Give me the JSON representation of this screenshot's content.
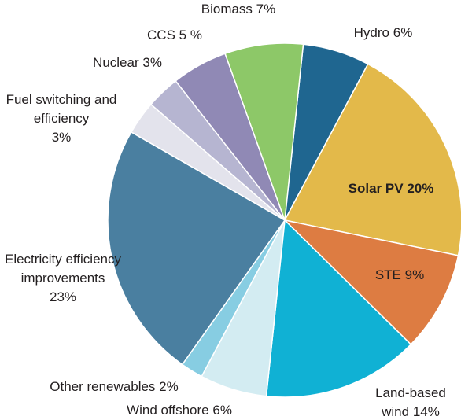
{
  "chart_data": {
    "type": "pie",
    "categories": [
      "Hydro",
      "Solar PV",
      "STE",
      "Land-based wind",
      "Wind offshore",
      "Other renewables",
      "Electricity efficiency improvements",
      "Fuel switching and efficiency",
      "Nuclear",
      "CCS",
      "Biomass"
    ],
    "values": [
      6,
      20,
      9,
      14,
      6,
      2,
      23,
      3,
      3,
      5,
      7
    ],
    "value_labels": [
      "6%",
      "20%",
      "9%",
      "14%",
      "6%",
      "2%",
      "23%",
      "3%",
      "3%",
      "5 %",
      "7%"
    ],
    "colors": [
      "#1f6690",
      "#e3b94a",
      "#dd7c42",
      "#10b1d4",
      "#d3ecf2",
      "#87cde2",
      "#4a7fa0",
      "#e3e3ec",
      "#b6b5d1",
      "#9089b5",
      "#8dc868"
    ]
  }
}
